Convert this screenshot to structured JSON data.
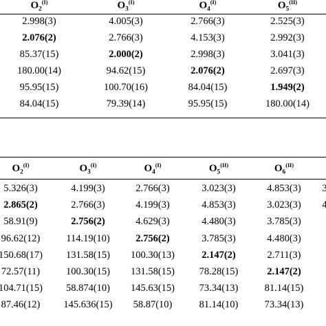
{
  "table1": {
    "headers": [
      {
        "base": "O",
        "sub": "2",
        "sup": "(I)"
      },
      {
        "base": "O",
        "sub": "3",
        "sup": "(I)"
      },
      {
        "base": "O",
        "sub": "4",
        "sup": "(I)"
      },
      {
        "base": "O",
        "sub": "5",
        "sup": "(II)"
      }
    ],
    "rows": [
      [
        {
          "v": "2.998(3)",
          "b": false
        },
        {
          "v": "4.005(3)",
          "b": false
        },
        {
          "v": "2.766(3)",
          "b": false
        },
        {
          "v": "2.525(3)",
          "b": false
        }
      ],
      [
        {
          "v": "2.076(2)",
          "b": true
        },
        {
          "v": "2.766(3)",
          "b": false
        },
        {
          "v": "4.153(3)",
          "b": false
        },
        {
          "v": "2.992(3)",
          "b": false
        }
      ],
      [
        {
          "v": "85.37(15)",
          "b": false
        },
        {
          "v": "2.000(2)",
          "b": true
        },
        {
          "v": "2.998(3)",
          "b": false
        },
        {
          "v": "3.041(3)",
          "b": false
        }
      ],
      [
        {
          "v": "180.00(14)",
          "b": false
        },
        {
          "v": "94.62(15)",
          "b": false
        },
        {
          "v": "2.076(2)",
          "b": true
        },
        {
          "v": "2.697(3)",
          "b": false
        }
      ],
      [
        {
          "v": "95.95(15)",
          "b": false
        },
        {
          "v": "100.70(16)",
          "b": false
        },
        {
          "v": "84.04(15)",
          "b": false
        },
        {
          "v": "1.949(2)",
          "b": true
        }
      ],
      [
        {
          "v": "84.04(15)",
          "b": false
        },
        {
          "v": "79.39(14)",
          "b": false
        },
        {
          "v": "95.95(15)",
          "b": false
        },
        {
          "v": "180.00(14)",
          "b": false
        }
      ]
    ]
  },
  "table2": {
    "headers": [
      {
        "base": "O",
        "sub": "2",
        "sup": "(I)"
      },
      {
        "base": "O",
        "sub": "3",
        "sup": "(I)"
      },
      {
        "base": "O",
        "sub": "4",
        "sup": "(I)"
      },
      {
        "base": "O",
        "sub": "5",
        "sup": "(II)"
      },
      {
        "base": "O",
        "sub": "6",
        "sup": "(II)"
      }
    ],
    "rows": [
      [
        {
          "v": "5.326(3)",
          "b": false
        },
        {
          "v": "4.199(3)",
          "b": false
        },
        {
          "v": "2.766(3)",
          "b": false
        },
        {
          "v": "3.023(3)",
          "b": false
        },
        {
          "v": "4.853(3)",
          "b": false
        }
      ],
      [
        {
          "v": "2.865(2)",
          "b": true
        },
        {
          "v": "2.766(3)",
          "b": false
        },
        {
          "v": "4.199(3)",
          "b": false
        },
        {
          "v": "4.853(3)",
          "b": false
        },
        {
          "v": "3.023(3)",
          "b": false
        }
      ],
      [
        {
          "v": "58.91(9)",
          "b": false
        },
        {
          "v": "2.756(2)",
          "b": true
        },
        {
          "v": "4.629(3)",
          "b": false
        },
        {
          "v": "4.480(3)",
          "b": false
        },
        {
          "v": "3.785(3)",
          "b": false
        }
      ],
      [
        {
          "v": "96.62(12)",
          "b": false
        },
        {
          "v": "114.19(10)",
          "b": false
        },
        {
          "v": "2.756(2)",
          "b": true
        },
        {
          "v": "3.785(3)",
          "b": false
        },
        {
          "v": "4.480(3)",
          "b": false
        }
      ],
      [
        {
          "v": "150.68(17)",
          "b": false
        },
        {
          "v": "131.58(15)",
          "b": false
        },
        {
          "v": "100.30(13)",
          "b": false
        },
        {
          "v": "2.147(2)",
          "b": true
        },
        {
          "v": "2.711(3)",
          "b": false
        }
      ],
      [
        {
          "v": "72.57(11)",
          "b": false
        },
        {
          "v": "100.30(15)",
          "b": false
        },
        {
          "v": "131.58(15)",
          "b": false
        },
        {
          "v": "78.28(15)",
          "b": false
        },
        {
          "v": "2.147(2)",
          "b": true
        }
      ],
      [
        {
          "v": "104.71(15)",
          "b": false
        },
        {
          "v": "58.874(10)",
          "b": false
        },
        {
          "v": "145.63(15)",
          "b": false
        },
        {
          "v": "73.34(13)",
          "b": false
        },
        {
          "v": "81.14(15)",
          "b": false
        }
      ],
      [
        {
          "v": "87.46(12)",
          "b": false
        },
        {
          "v": "145.636(15)",
          "b": false
        },
        {
          "v": "58.87(10)",
          "b": false
        },
        {
          "v": "81.14(10)",
          "b": false
        },
        {
          "v": "73.34(13)",
          "b": false
        }
      ]
    ],
    "right_edge_fragments": [
      "3",
      "4"
    ]
  }
}
